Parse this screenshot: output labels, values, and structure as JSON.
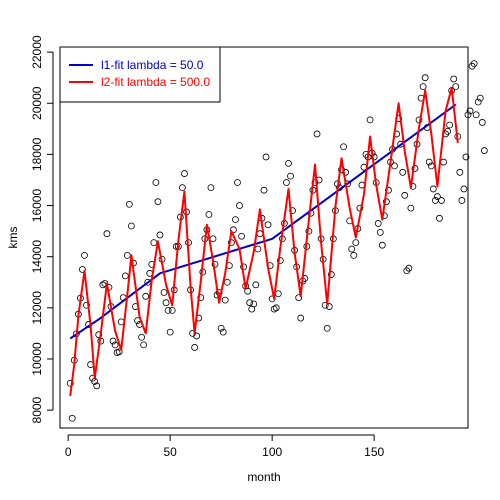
{
  "chart_data": {
    "type": "scatter",
    "title": "",
    "xlabel": "month",
    "ylabel": "kms",
    "xlim": [
      -4,
      196
    ],
    "ylim": [
      7300,
      22200
    ],
    "xticks": [
      0,
      50,
      100,
      150
    ],
    "yticks": [
      8000,
      10000,
      12000,
      14000,
      16000,
      18000,
      20000,
      22000
    ],
    "xtick_labels": [
      "0",
      "50",
      "100",
      "150"
    ],
    "ytick_labels": [
      "8000",
      "10000",
      "12000",
      "14000",
      "16000",
      "18000",
      "20000",
      "22000"
    ],
    "legend_position": "top-left",
    "point_style": "open-circle",
    "points_y": [
      9050,
      7680,
      9950,
      10980,
      11750,
      12380,
      13500,
      14050,
      12100,
      11350,
      9780,
      9250,
      9120,
      8950,
      10950,
      10700,
      12900,
      12950,
      14900,
      12800,
      12050,
      10700,
      10550,
      10250,
      10280,
      11450,
      12400,
      13250,
      14050,
      16050,
      15200,
      13750,
      12050,
      11500,
      11350,
      10850,
      10550,
      12450,
      13000,
      13350,
      13700,
      14550,
      16900,
      16150,
      14850,
      13900,
      12600,
      12200,
      11900,
      11050,
      11900,
      12700,
      14400,
      14400,
      15550,
      16700,
      17250,
      15750,
      14550,
      12700,
      11000,
      10450,
      10900,
      11600,
      12400,
      13400,
      14700,
      15050,
      15650,
      16700,
      14700,
      13700,
      12500,
      12600,
      11200,
      11050,
      12300,
      13000,
      13650,
      14550,
      15050,
      15450,
      16900,
      16000,
      14800,
      13600,
      12850,
      12650,
      12200,
      11950,
      12150,
      12900,
      14300,
      14900,
      15500,
      16600,
      17900,
      15250,
      13650,
      12350,
      11950,
      12000,
      12550,
      13850,
      14700,
      15300,
      16900,
      17650,
      17150,
      15800,
      14250,
      13600,
      12400,
      11600,
      13050,
      13150,
      14400,
      15000,
      15700,
      16600,
      16900,
      18800,
      17000,
      14700,
      13900,
      12100,
      11200,
      12050,
      13300,
      14700,
      15800,
      16850,
      16700,
      17400,
      18300,
      17300,
      16850,
      15400,
      14300,
      14050,
      14550,
      15100,
      15900,
      16800,
      17500,
      18000,
      17900,
      19350,
      18050,
      17900,
      16900,
      15300,
      14950,
      14450,
      15600,
      16150,
      16600,
      17700,
      18200,
      17550,
      18800,
      19400,
      18400,
      17300,
      16400,
      13450,
      13550,
      15900,
      16750,
      17450,
      18400,
      19350,
      20200,
      20650,
      21000,
      19050,
      17700,
      17550,
      16650,
      16200,
      16350,
      15500,
      16200,
      17700,
      18800,
      18900,
      19150,
      20500,
      20950,
      20650,
      18700,
      17300,
      16200,
      16650,
      17900,
      19550,
      19700,
      21450,
      21550,
      19550,
      20050,
      20200,
      19250,
      18150
    ],
    "series": [
      {
        "name": "l1-fit lambda = 50.0",
        "color": "#0000cc",
        "points": [
          [
            1,
            10800
          ],
          [
            15,
            11550
          ],
          [
            45,
            13350
          ],
          [
            100,
            14700
          ],
          [
            190,
            19950
          ]
        ]
      },
      {
        "name": "l2-fit lambda = 500.0",
        "color": "#ff0000",
        "points": [
          [
            1,
            8550
          ],
          [
            3,
            9800
          ],
          [
            5,
            11700
          ],
          [
            8,
            13450
          ],
          [
            11,
            11300
          ],
          [
            13,
            9250
          ],
          [
            16,
            11000
          ],
          [
            19,
            12950
          ],
          [
            23,
            11100
          ],
          [
            26,
            10350
          ],
          [
            29,
            12500
          ],
          [
            31,
            14050
          ],
          [
            35,
            11650
          ],
          [
            38,
            11000
          ],
          [
            41,
            13100
          ],
          [
            44,
            14600
          ],
          [
            48,
            12900
          ],
          [
            51,
            12100
          ],
          [
            54,
            14600
          ],
          [
            57,
            16550
          ],
          [
            60,
            12800
          ],
          [
            62,
            11000
          ],
          [
            65,
            13050
          ],
          [
            68,
            15250
          ],
          [
            71,
            13850
          ],
          [
            74,
            12200
          ],
          [
            77,
            13350
          ],
          [
            80,
            15000
          ],
          [
            84,
            14300
          ],
          [
            87,
            12750
          ],
          [
            91,
            14200
          ],
          [
            94,
            15850
          ],
          [
            98,
            13550
          ],
          [
            101,
            12350
          ],
          [
            104,
            14350
          ],
          [
            108,
            16650
          ],
          [
            111,
            14150
          ],
          [
            114,
            12450
          ],
          [
            118,
            15450
          ],
          [
            121,
            17600
          ],
          [
            124,
            14550
          ],
          [
            127,
            12150
          ],
          [
            131,
            15950
          ],
          [
            134,
            17850
          ],
          [
            138,
            15900
          ],
          [
            141,
            14750
          ],
          [
            145,
            16450
          ],
          [
            148,
            18700
          ],
          [
            151,
            16800
          ],
          [
            154,
            15450
          ],
          [
            158,
            17700
          ],
          [
            162,
            20000
          ],
          [
            165,
            18100
          ],
          [
            168,
            16700
          ],
          [
            172,
            19050
          ],
          [
            175,
            20500
          ],
          [
            178,
            18800
          ],
          [
            181,
            16750
          ],
          [
            185,
            19700
          ],
          [
            188,
            20600
          ],
          [
            191,
            18450
          ]
        ]
      }
    ]
  }
}
